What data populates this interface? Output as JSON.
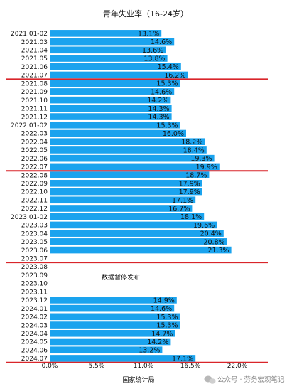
{
  "chart_data": {
    "type": "bar",
    "orientation": "horizontal",
    "title": "青年失业率（16-24岁）",
    "categories": [
      "2021.01-02",
      "2021.03",
      "2021.04",
      "2021.05",
      "2021.06",
      "2021.07",
      "2021.08",
      "2021.09",
      "2021.10",
      "2021.11",
      "2021.12",
      "2022.01-02",
      "2022.03",
      "2022.04",
      "2022.05",
      "2022.06",
      "2022.07",
      "2022.08",
      "2022.09",
      "2022.10",
      "2022.11",
      "2022.12",
      "2023.01-02",
      "2023.03",
      "2023.04",
      "2023.05",
      "2023.06",
      "2023.07",
      "2023.08",
      "2023.09",
      "2023.10",
      "2023.11",
      "2023.12",
      "2024.01",
      "2024.02",
      "2024.03",
      "2024.04",
      "2024.05",
      "2024.06",
      "2024.07"
    ],
    "values": [
      13.1,
      14.6,
      13.6,
      13.8,
      15.4,
      16.2,
      15.3,
      14.6,
      14.2,
      14.3,
      14.3,
      15.3,
      16.0,
      18.2,
      18.4,
      19.3,
      19.9,
      18.7,
      17.9,
      17.9,
      17.1,
      16.7,
      18.1,
      19.6,
      20.4,
      20.8,
      21.3,
      null,
      null,
      null,
      null,
      null,
      14.9,
      14.6,
      15.3,
      15.3,
      14.7,
      14.2,
      13.2,
      17.1
    ],
    "value_labels": [
      "13.1%",
      "14.6%",
      "13.6%",
      "13.8%",
      "15.4%",
      "16.2%",
      "15.3%",
      "14.6%",
      "14.2%",
      "14.3%",
      "14.3%",
      "15.3%",
      "16.0%",
      "18.2%",
      "18.4%",
      "19.3%",
      "19.9%",
      "18.7%",
      "17.9%",
      "17.9%",
      "17.1%",
      "16.7%",
      "18.1%",
      "19.6%",
      "20.4%",
      "20.8%",
      "21.3%",
      "",
      "",
      "",
      "",
      "",
      "14.9%",
      "14.6%",
      "15.3%",
      "15.3%",
      "14.7%",
      "14.2%",
      "13.2%",
      "17.1%"
    ],
    "xlim": [
      0,
      22
    ],
    "xticks": [
      "0.0%",
      "5.5%",
      "11.0%",
      "16.5%",
      "22.0%"
    ],
    "xlabel": "国家统计局",
    "annotation": "数据暂停发布",
    "separator_after_index": [
      5,
      16,
      27,
      39
    ],
    "bar_color": "#1aa3ee",
    "separator_color": "#d9252a",
    "grid": false,
    "legend": "none"
  },
  "watermark": "公众号 · 劳务宏观笔记"
}
